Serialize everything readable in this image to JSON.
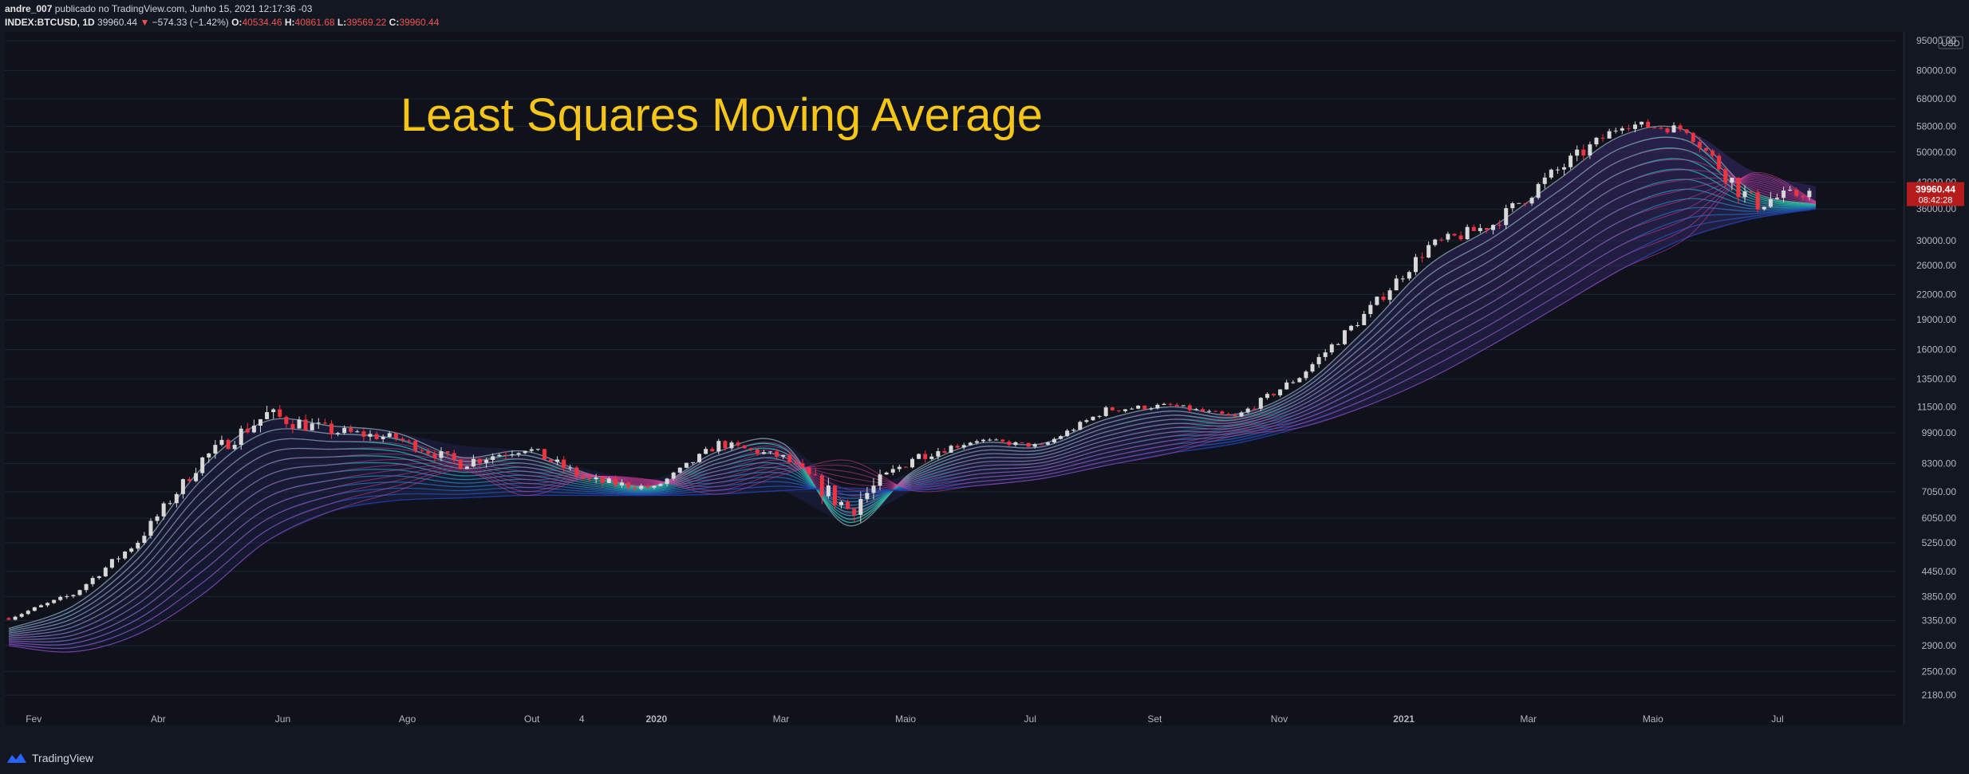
{
  "header": {
    "author": "andre_007",
    "published_text": "publicado no TradingView.com, Junho 15, 2021 12:17:36 -03",
    "symbol": "INDEX:BTCUSD, 1D",
    "last": "39960.44",
    "change_arrow": "▼",
    "change": "−574.33 (−1.42%)",
    "o_label": "O:",
    "o_value": "40534.46",
    "h_label": "H:",
    "h_value": "40861.68",
    "l_label": "L:",
    "l_value": "39569.22",
    "c_label": "C:",
    "c_value": "39960.44"
  },
  "overlay_title": "Least Squares Moving Average",
  "price_scale": {
    "unit": "USD",
    "last_price_tag": "39960.44",
    "countdown_tag": "08:42:28"
  },
  "footer": {
    "brand": "TradingView",
    "logo_icon": "tradingview-logo-icon"
  },
  "colors": {
    "background": "#131722",
    "plot_bg": "#0f121a",
    "title": "#f5c518",
    "up": "#d8d8d8",
    "down": "#ef3340",
    "ma_fast": "#26d3a0",
    "ma_slow": "#1e3fae",
    "ma_high": "#e040a0",
    "tag_bg": "#b71c1c"
  },
  "chart_data": {
    "type": "line",
    "scale": "log",
    "title": "Least Squares Moving Average",
    "xlabel": "",
    "ylabel": "",
    "x_ticks": [
      "Fev",
      "Abr",
      "Jun",
      "Ago",
      "Out",
      "4",
      "2020",
      "Mar",
      "Maio",
      "Jul",
      "Set",
      "Nov",
      "2021",
      "Mar",
      "Maio",
      "Jul"
    ],
    "y_ticks": [
      2180,
      2500,
      2900,
      3350,
      3850,
      4450,
      5250,
      6050,
      7050,
      8300,
      9900,
      11500,
      13500,
      16000,
      19000,
      22000,
      26000,
      30000,
      36000,
      42000,
      50000,
      58000,
      68000,
      80000,
      95000
    ],
    "ylim": [
      1900,
      100000
    ],
    "price_monthly": {
      "x": [
        "2019-02",
        "2019-03",
        "2019-04",
        "2019-05",
        "2019-06",
        "2019-07",
        "2019-08",
        "2019-09",
        "2019-10",
        "2019-11",
        "2019-12",
        "2020-01",
        "2020-02",
        "2020-03",
        "2020-04",
        "2020-05",
        "2020-06",
        "2020-07",
        "2020-08",
        "2020-09",
        "2020-10",
        "2020-11",
        "2020-12",
        "2021-01",
        "2021-02",
        "2021-03",
        "2021-04",
        "2021-05",
        "2021-06"
      ],
      "close": [
        3400,
        3900,
        5300,
        8500,
        11000,
        10000,
        9600,
        8300,
        9100,
        7500,
        7200,
        9300,
        8600,
        6400,
        8600,
        9500,
        9150,
        11300,
        11600,
        10800,
        13700,
        19500,
        29000,
        33000,
        45000,
        58800,
        57000,
        37300,
        39960
      ],
      "high": [
        3700,
        4100,
        5600,
        9000,
        13800,
        13100,
        12300,
        10900,
        10350,
        9300,
        7700,
        9600,
        10500,
        9200,
        9400,
        10100,
        10400,
        11400,
        12400,
        12050,
        14100,
        19900,
        29300,
        42000,
        58400,
        61800,
        64900,
        59600,
        41300
      ],
      "low": [
        3350,
        3400,
        3900,
        5300,
        7500,
        9100,
        9400,
        7700,
        7300,
        6500,
        6400,
        7000,
        8500,
        3850,
        6200,
        8600,
        8900,
        9000,
        10600,
        9900,
        10400,
        13300,
        18000,
        28800,
        33400,
        44800,
        47000,
        30000,
        31000
      ]
    },
    "series": [
      {
        "name": "",
        "length": "fast",
        "values": [
          3200,
          3650,
          5000,
          8100,
          10600,
          10300,
          9900,
          8600,
          8900,
          7800,
          7300,
          8900,
          9300,
          5800,
          7900,
          9300,
          9300,
          10700,
          11500,
          11000,
          12800,
          17800,
          26000,
          32500,
          42500,
          55000,
          56500,
          40000,
          37000
        ]
      },
      {
        "name": "",
        "length": "mid",
        "values": [
          3100,
          3300,
          4200,
          6500,
          9200,
          10000,
          9900,
          9200,
          8700,
          8000,
          7600,
          8300,
          9100,
          7100,
          7500,
          8700,
          9100,
          9800,
          10800,
          11100,
          12000,
          15200,
          21000,
          28000,
          37000,
          47000,
          53000,
          45000,
          41000
        ]
      },
      {
        "name": "",
        "length": "slow",
        "values": [
          2900,
          2800,
          3100,
          3900,
          5300,
          6300,
          6700,
          6800,
          6900,
          6900,
          6900,
          6950,
          7100,
          7200,
          7100,
          7300,
          7600,
          8200,
          8800,
          9300,
          10200,
          11500,
          13500,
          16500,
          20500,
          25500,
          30500,
          34000,
          36000
        ]
      }
    ]
  }
}
